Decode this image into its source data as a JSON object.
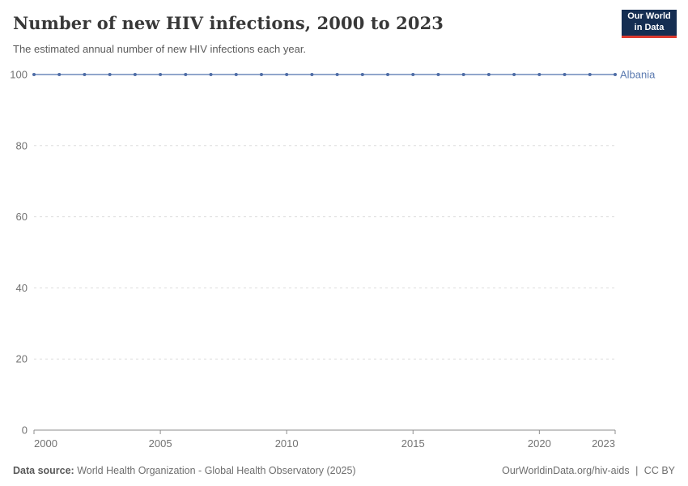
{
  "header": {
    "title": "Number of new HIV infections, 2000 to 2023",
    "subtitle": "The estimated annual number of new HIV infections each year.",
    "logo": {
      "line1": "Our World",
      "line2": "in Data"
    }
  },
  "chart_data": {
    "type": "line",
    "title": "Number of new HIV infections, 2000 to 2023",
    "xlabel": "",
    "ylabel": "",
    "xlim": [
      2000,
      2023
    ],
    "ylim": [
      0,
      100
    ],
    "x_ticks": [
      2000,
      2005,
      2010,
      2015,
      2020,
      2023
    ],
    "y_ticks": [
      0,
      20,
      40,
      60,
      80,
      100
    ],
    "grid": "horizontal-dashed",
    "legend_position": "end-of-line-label",
    "series": [
      {
        "name": "Albania",
        "color": "#6d89ba",
        "point_color": "#4f6da6",
        "x": [
          2000,
          2001,
          2002,
          2003,
          2004,
          2005,
          2006,
          2007,
          2008,
          2009,
          2010,
          2011,
          2012,
          2013,
          2014,
          2015,
          2016,
          2017,
          2018,
          2019,
          2020,
          2021,
          2022,
          2023
        ],
        "values": [
          100,
          100,
          100,
          100,
          100,
          100,
          100,
          100,
          100,
          100,
          100,
          100,
          100,
          100,
          100,
          100,
          100,
          100,
          100,
          100,
          100,
          100,
          100,
          100
        ]
      }
    ]
  },
  "footer": {
    "source_label": "Data source:",
    "source_text": "World Health Organization - Global Health Observatory (2025)",
    "link_text": "OurWorldinData.org/hiv-aids",
    "separator": "|",
    "license_text": "CC BY"
  },
  "colors": {
    "accent_line": "#6d89ba",
    "accent_point": "#4f6da6",
    "series_label": "#5b7ab0",
    "gridline": "#dddddd",
    "axis_line": "#8c8c8c",
    "axis_text": "#737373",
    "logo_bg": "#152e52",
    "logo_red": "#dc3a2f"
  }
}
